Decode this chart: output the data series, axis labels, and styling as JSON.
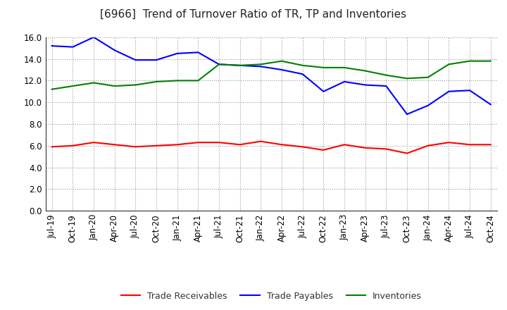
{
  "title": "[6966]  Trend of Turnover Ratio of TR, TP and Inventories",
  "x_labels": [
    "Jul-19",
    "Oct-19",
    "Jan-20",
    "Apr-20",
    "Jul-20",
    "Oct-20",
    "Jan-21",
    "Apr-21",
    "Jul-21",
    "Oct-21",
    "Jan-22",
    "Apr-22",
    "Jul-22",
    "Oct-22",
    "Jan-23",
    "Apr-23",
    "Jul-23",
    "Oct-23",
    "Jan-24",
    "Apr-24",
    "Jul-24",
    "Oct-24"
  ],
  "trade_receivables": [
    5.9,
    6.0,
    6.3,
    6.1,
    5.9,
    6.0,
    6.1,
    6.3,
    6.3,
    6.1,
    6.4,
    6.1,
    5.9,
    5.6,
    6.1,
    5.8,
    5.7,
    5.3,
    6.0,
    6.3,
    6.1,
    6.1
  ],
  "trade_payables": [
    15.2,
    15.1,
    16.0,
    14.8,
    13.9,
    13.9,
    14.5,
    14.6,
    13.5,
    13.4,
    13.3,
    13.0,
    12.6,
    11.0,
    11.9,
    11.6,
    11.5,
    8.9,
    9.7,
    11.0,
    11.1,
    9.8
  ],
  "inventories": [
    11.2,
    11.5,
    11.8,
    11.5,
    11.6,
    11.9,
    12.0,
    12.0,
    13.5,
    13.4,
    13.5,
    13.8,
    13.4,
    13.2,
    13.2,
    12.9,
    12.5,
    12.2,
    12.3,
    13.5,
    13.8,
    13.8
  ],
  "ylim": [
    0.0,
    16.0
  ],
  "yticks": [
    0.0,
    2.0,
    4.0,
    6.0,
    8.0,
    10.0,
    12.0,
    14.0,
    16.0
  ],
  "color_tr": "#ff0000",
  "color_tp": "#0000ff",
  "color_inv": "#008000",
  "bg_color": "#ffffff",
  "grid_color": "#999999",
  "legend_labels": [
    "Trade Receivables",
    "Trade Payables",
    "Inventories"
  ],
  "title_fontsize": 11,
  "axis_fontsize": 8.5,
  "legend_fontsize": 9
}
